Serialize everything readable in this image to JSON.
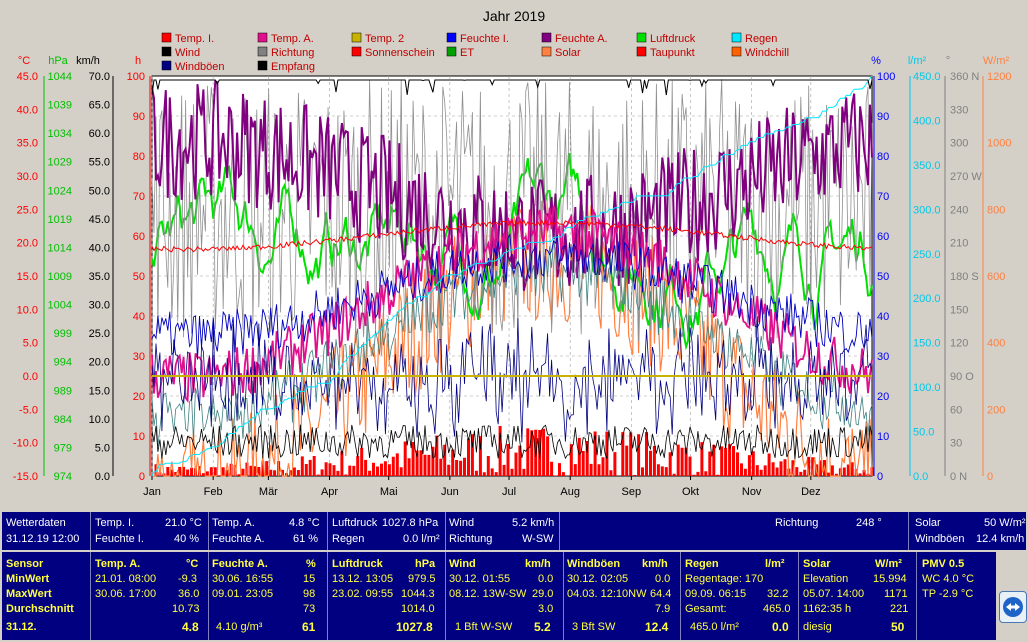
{
  "chart_data": {
    "type": "line",
    "title": "Jahr 2019",
    "months": [
      "Jan",
      "Feb",
      "Mär",
      "Apr",
      "Mai",
      "Jun",
      "Jul",
      "Aug",
      "Sep",
      "Okt",
      "Nov",
      "Dez"
    ],
    "legend": [
      {
        "label": "Temp. I.",
        "color": "#ff0000"
      },
      {
        "label": "Temp. A.",
        "color": "#e0108c"
      },
      {
        "label": "Temp. 2",
        "color": "#c8b400"
      },
      {
        "label": "Feuchte I.",
        "color": "#0000ff"
      },
      {
        "label": "Feuchte A.",
        "color": "#800080"
      },
      {
        "label": "Luftdruck",
        "color": "#00e000"
      },
      {
        "label": "Regen",
        "color": "#00e8ff"
      },
      {
        "label": "Wind",
        "color": "#000000"
      },
      {
        "label": "Richtung",
        "color": "#808080"
      },
      {
        "label": "Sonnenschein",
        "color": "#ff0000"
      },
      {
        "label": "ET",
        "color": "#00a000"
      },
      {
        "label": "Solar",
        "color": "#ff8040"
      },
      {
        "label": "Taupunkt",
        "color": "#ff0000"
      },
      {
        "label": "Windchill",
        "color": "#ff6000"
      },
      {
        "label": "Windböen",
        "color": "#000080"
      },
      {
        "label": "Empfang",
        "color": "#000000"
      }
    ],
    "axes": {
      "temp": {
        "unit": "°C",
        "range": [
          -15,
          45
        ],
        "ticks": [
          "45.0",
          "40.0",
          "35.0",
          "30.0",
          "25.0",
          "20.0",
          "15.0",
          "10.0",
          "5.0",
          "0.0",
          "-5.0",
          "-10.0",
          "-15.0"
        ],
        "color": "#ff0000"
      },
      "pressure": {
        "unit": "hPa",
        "range": [
          974,
          1044
        ],
        "ticks": [
          "1044",
          "1039",
          "1034",
          "1029",
          "1024",
          "1019",
          "1014",
          "1009",
          "1004",
          "999",
          "994",
          "989",
          "984",
          "979",
          "974"
        ],
        "color": "#00c000"
      },
      "wind": {
        "unit": "km/h",
        "range": [
          0,
          70
        ],
        "ticks": [
          "70.0",
          "65.0",
          "60.0",
          "55.0",
          "50.0",
          "45.0",
          "40.0",
          "35.0",
          "30.0",
          "25.0",
          "20.0",
          "15.0",
          "10.0",
          "5.0",
          "0.0"
        ],
        "color": "#000000"
      },
      "sun_hours": {
        "unit": "h",
        "range": [
          0,
          100
        ],
        "ticks": [
          "100",
          "90",
          "80",
          "70",
          "60",
          "50",
          "40",
          "30",
          "20",
          "10",
          "0"
        ],
        "color": "#ff0000"
      },
      "humidity": {
        "unit": "%",
        "range": [
          0,
          100
        ],
        "ticks": [
          "100",
          "90",
          "80",
          "70",
          "60",
          "50",
          "40",
          "30",
          "20",
          "10",
          "0"
        ],
        "color": "#0000ff"
      },
      "rain": {
        "unit": "l/m²",
        "range": [
          0,
          450
        ],
        "ticks": [
          "450.0",
          "400.0",
          "350.0",
          "300.0",
          "250.0",
          "200.0",
          "150.0",
          "100.0",
          "50.0",
          "0.0"
        ],
        "color": "#00c8e8"
      },
      "direction": {
        "unit": "°",
        "range": [
          0,
          360
        ],
        "ticks": [
          "360 N",
          "330",
          "300",
          "270 W",
          "240",
          "210",
          "180 S",
          "150",
          "120",
          "90 O",
          "60",
          "30",
          "0   N"
        ],
        "color": "#808080"
      },
      "solar": {
        "unit": "W/m²",
        "range": [
          0,
          1200
        ],
        "ticks": [
          "1200",
          "1000",
          "800",
          "600",
          "400",
          "200",
          "0"
        ],
        "color": "#ff8040"
      }
    },
    "series_summary": [
      {
        "name": "Temp. I.",
        "typical": 21.0,
        "unit": "°C"
      },
      {
        "name": "Temp. 2",
        "constant": 0.0,
        "unit": "°C"
      },
      {
        "name": "Regen",
        "start": 0,
        "end": 465.0,
        "unit": "l/m²"
      }
    ]
  },
  "current": {
    "wetterdaten_label": "Wetterdaten",
    "datetime": "31.12.19 12:00",
    "temp_i_label": "Temp. I.",
    "temp_i": "21.0 °C",
    "feuchte_i_label": "Feuchte I.",
    "feuchte_i": "40 %",
    "temp_a_label": "Temp. A.",
    "temp_a": "4.8 °C",
    "feuchte_a_label": "Feuchte A.",
    "feuchte_a": "61 %",
    "luftdruck_label": "Luftdruck",
    "luftdruck": "1027.8 hPa",
    "regen_label": "Regen",
    "regen": "0.0 l/m²",
    "wind_label": "Wind",
    "wind": "5.2 km/h",
    "richtung_label": "Richtung",
    "richtung_short": "W-SW",
    "richtung2_label": "Richtung",
    "richtung_deg": "248 °",
    "solar_label": "Solar",
    "solar": "50 W/m²",
    "windboeen_label": "Windböen",
    "windboeen": "12.4 km/h"
  },
  "stats": {
    "row_labels": [
      "Sensor",
      "MinWert",
      "MaxWert",
      "Durchschnitt",
      "31.12."
    ],
    "temp": {
      "header": "Temp. A.",
      "unit": "°C",
      "min_date": "21.01.  08:00",
      "min": "-9.3",
      "max_date": "30.06.  17:00",
      "max": "36.0",
      "avg": "10.73",
      "cur": "4.8"
    },
    "feuchte": {
      "header": "Feuchte A.",
      "unit": "%",
      "min_date": "30.06.  16:55",
      "min": "15",
      "max_date": "09.01.  23:05",
      "max": "98",
      "avg": "73",
      "extra": "4.10 g/m³",
      "cur": "61"
    },
    "luftdruck": {
      "header": "Luftdruck",
      "unit": "hPa",
      "min_date": "13.12.  13:05",
      "min": "979.5",
      "max_date": "23.02.  09:55",
      "max": "1044.3",
      "avg": "1014.0",
      "cur": "1027.8"
    },
    "wind": {
      "header": "Wind",
      "unit": "km/h",
      "min_date": "30.12.  01:55",
      "min": "0.0",
      "max_date": "08.12.  13W-SW",
      "max": "29.0",
      "avg": "3.0",
      "extra": "1 Bft W-SW",
      "cur": "5.2"
    },
    "windboeen": {
      "header": "Windböen",
      "unit": "km/h",
      "min_date": "30.12.  02:05",
      "min": "0.0",
      "max_date": "04.03.  12:10NW",
      "max": "64.4",
      "avg": "7.9",
      "extra": "3 Bft SW",
      "cur": "12.4"
    },
    "regen": {
      "header": "Regen",
      "unit": "l/m²",
      "l1": "Regentage: 170",
      "l2": "09.09.  06:15",
      "l2v": "32.2",
      "l3": "Gesamt:",
      "l3v": "465.0",
      "extra": "465.0 l/m²",
      "cur": "0.0"
    },
    "solar": {
      "header": "Solar",
      "unit": "W/m²",
      "l1": "Elevation",
      "l1v": "15.994",
      "l2": "05.07.  14:00",
      "l2v": "1171",
      "l3": "1162:35 h",
      "l3v": "221",
      "extra": "diesig",
      "cur": "50"
    },
    "pmv": {
      "header": "PMV 0.5",
      "wc": "WC 4.0 °C",
      "tp": "TP -2.9 °C"
    }
  }
}
